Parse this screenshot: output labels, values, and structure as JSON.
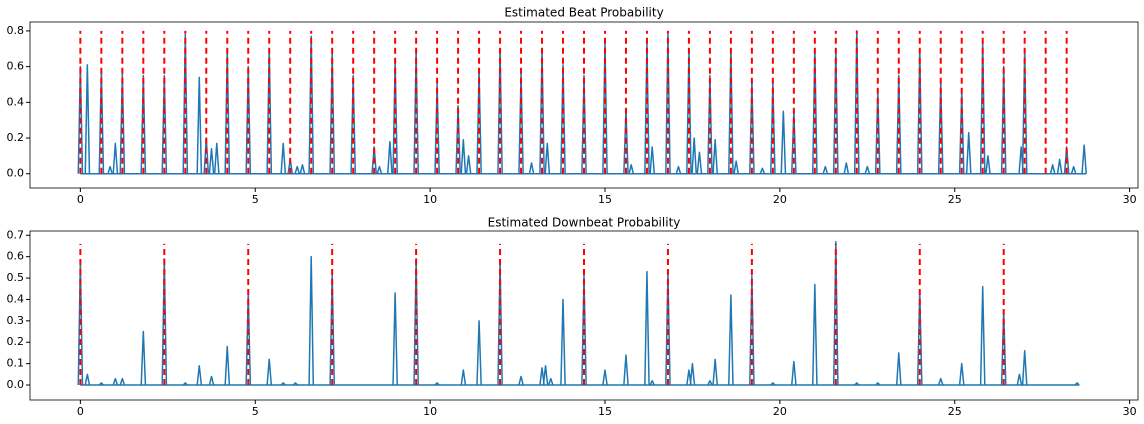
{
  "chart_data": [
    {
      "type": "line",
      "title": "Estimated Beat Probability",
      "xlim": [
        -1.44,
        30.24
      ],
      "ylim": [
        -0.08,
        0.85
      ],
      "xticks": [
        0,
        5,
        10,
        15,
        20,
        25,
        30
      ],
      "yticks": [
        {
          "value": 0,
          "label": "0.0"
        },
        {
          "value": 0.2,
          "label": "0.2"
        },
        {
          "value": 0.4,
          "label": "0.4"
        },
        {
          "value": 0.6,
          "label": "0.6"
        },
        {
          "value": 0.8,
          "label": "0.8"
        }
      ],
      "series": [
        {
          "color": "#1f77b4",
          "x": [
            0,
            0.2,
            0.6,
            0.85,
            1.0,
            1.2,
            1.8,
            2.4,
            3.0,
            3.4,
            3.6,
            3.75,
            3.9,
            4.2,
            4.8,
            5.4,
            5.8,
            6.0,
            6.2,
            6.35,
            6.6,
            7.2,
            7.8,
            8.4,
            8.55,
            8.85,
            9.0,
            9.6,
            10.2,
            10.8,
            10.95,
            11.1,
            11.4,
            12.0,
            12.6,
            12.9,
            13.2,
            13.35,
            13.8,
            14.4,
            15.0,
            15.6,
            15.75,
            16.2,
            16.35,
            16.8,
            17.1,
            17.4,
            17.55,
            17.7,
            18.0,
            18.15,
            18.6,
            18.75,
            19.2,
            19.5,
            19.8,
            20.1,
            20.4,
            21.0,
            21.3,
            21.6,
            21.9,
            22.2,
            22.5,
            22.8,
            23.4,
            24.0,
            24.6,
            25.2,
            25.4,
            25.8,
            25.95,
            26.4,
            26.9,
            27.0,
            27.8,
            28.0,
            28.2,
            28.4,
            28.7
          ],
          "values": [
            0.6,
            0.61,
            0.58,
            0.04,
            0.17,
            0.56,
            0.55,
            0.55,
            0.78,
            0.54,
            0.2,
            0.14,
            0.17,
            0.69,
            0.6,
            0.7,
            0.17,
            0.08,
            0.04,
            0.05,
            0.77,
            0.68,
            0.55,
            0.15,
            0.04,
            0.18,
            0.63,
            0.68,
            0.5,
            0.38,
            0.19,
            0.1,
            0.58,
            0.7,
            0.56,
            0.06,
            0.69,
            0.17,
            0.61,
            0.55,
            0.74,
            0.36,
            0.05,
            0.73,
            0.15,
            0.78,
            0.04,
            0.68,
            0.2,
            0.12,
            0.55,
            0.19,
            0.69,
            0.07,
            0.52,
            0.03,
            0.51,
            0.35,
            0.35,
            0.7,
            0.04,
            0.7,
            0.06,
            0.8,
            0.04,
            0.46,
            0.55,
            0.68,
            0.51,
            0.46,
            0.23,
            0.73,
            0.1,
            0.6,
            0.15,
            0.69,
            0.05,
            0.08,
            0.15,
            0.04,
            0.16
          ]
        }
      ],
      "vlines": {
        "color": "#ff0000",
        "ymin": 0,
        "ymax": 0.8,
        "x": [
          0,
          0.6,
          1.2,
          1.8,
          2.4,
          3,
          3.6,
          4.2,
          4.8,
          5.4,
          6,
          6.6,
          7.2,
          7.8,
          8.4,
          9,
          9.6,
          10.2,
          10.8,
          11.4,
          12,
          12.6,
          13.2,
          13.8,
          14.4,
          15,
          15.6,
          16.2,
          16.8,
          17.4,
          18,
          18.6,
          19.2,
          19.8,
          20.4,
          21,
          21.6,
          22.2,
          22.8,
          23.4,
          24,
          24.6,
          25.2,
          25.8,
          26.4,
          27,
          27.6,
          28.2
        ]
      }
    },
    {
      "type": "line",
      "title": "Estimated Downbeat Probability",
      "xlim": [
        -1.44,
        30.24
      ],
      "ylim": [
        -0.07,
        0.72
      ],
      "xticks": [
        0,
        5,
        10,
        15,
        20,
        25,
        30
      ],
      "yticks": [
        {
          "value": 0,
          "label": "0.0"
        },
        {
          "value": 0.1,
          "label": "0.1"
        },
        {
          "value": 0.2,
          "label": "0.2"
        },
        {
          "value": 0.3,
          "label": "0.3"
        },
        {
          "value": 0.4,
          "label": "0.4"
        },
        {
          "value": 0.5,
          "label": "0.5"
        },
        {
          "value": 0.6,
          "label": "0.6"
        },
        {
          "value": 0.7,
          "label": "0.7"
        }
      ],
      "series": [
        {
          "color": "#1f77b4",
          "x": [
            0,
            0.2,
            0.6,
            1.0,
            1.2,
            1.8,
            2.4,
            3.0,
            3.4,
            3.75,
            4.2,
            4.8,
            5.4,
            5.8,
            6.15,
            6.6,
            7.2,
            9.0,
            9.6,
            10.2,
            10.95,
            11.4,
            12.0,
            12.6,
            13.2,
            13.3,
            13.45,
            13.8,
            14.4,
            15.0,
            15.6,
            16.2,
            16.35,
            16.8,
            17.4,
            17.5,
            18.0,
            18.15,
            18.6,
            19.2,
            19.8,
            20.4,
            21.0,
            21.6,
            22.2,
            22.8,
            23.4,
            24.0,
            24.6,
            25.2,
            25.8,
            26.4,
            26.85,
            27.0,
            28.5
          ],
          "values": [
            0.58,
            0.05,
            0.01,
            0.03,
            0.03,
            0.25,
            0.59,
            0.01,
            0.09,
            0.04,
            0.18,
            0.43,
            0.12,
            0.01,
            0.01,
            0.6,
            0.52,
            0.43,
            0.59,
            0.01,
            0.07,
            0.3,
            0.58,
            0.04,
            0.08,
            0.09,
            0.03,
            0.4,
            0.52,
            0.07,
            0.14,
            0.53,
            0.02,
            0.53,
            0.07,
            0.1,
            0.02,
            0.12,
            0.42,
            0.51,
            0.01,
            0.11,
            0.47,
            0.67,
            0.01,
            0.01,
            0.15,
            0.44,
            0.03,
            0.1,
            0.46,
            0.35,
            0.05,
            0.16,
            0.01
          ]
        }
      ],
      "vlines": {
        "color": "#ff0000",
        "ymin": 0,
        "ymax": 0.66,
        "x": [
          0,
          2.4,
          4.8,
          7.2,
          9.6,
          12,
          14.4,
          16.8,
          19.2,
          21.6,
          24,
          26.4
        ]
      }
    }
  ]
}
